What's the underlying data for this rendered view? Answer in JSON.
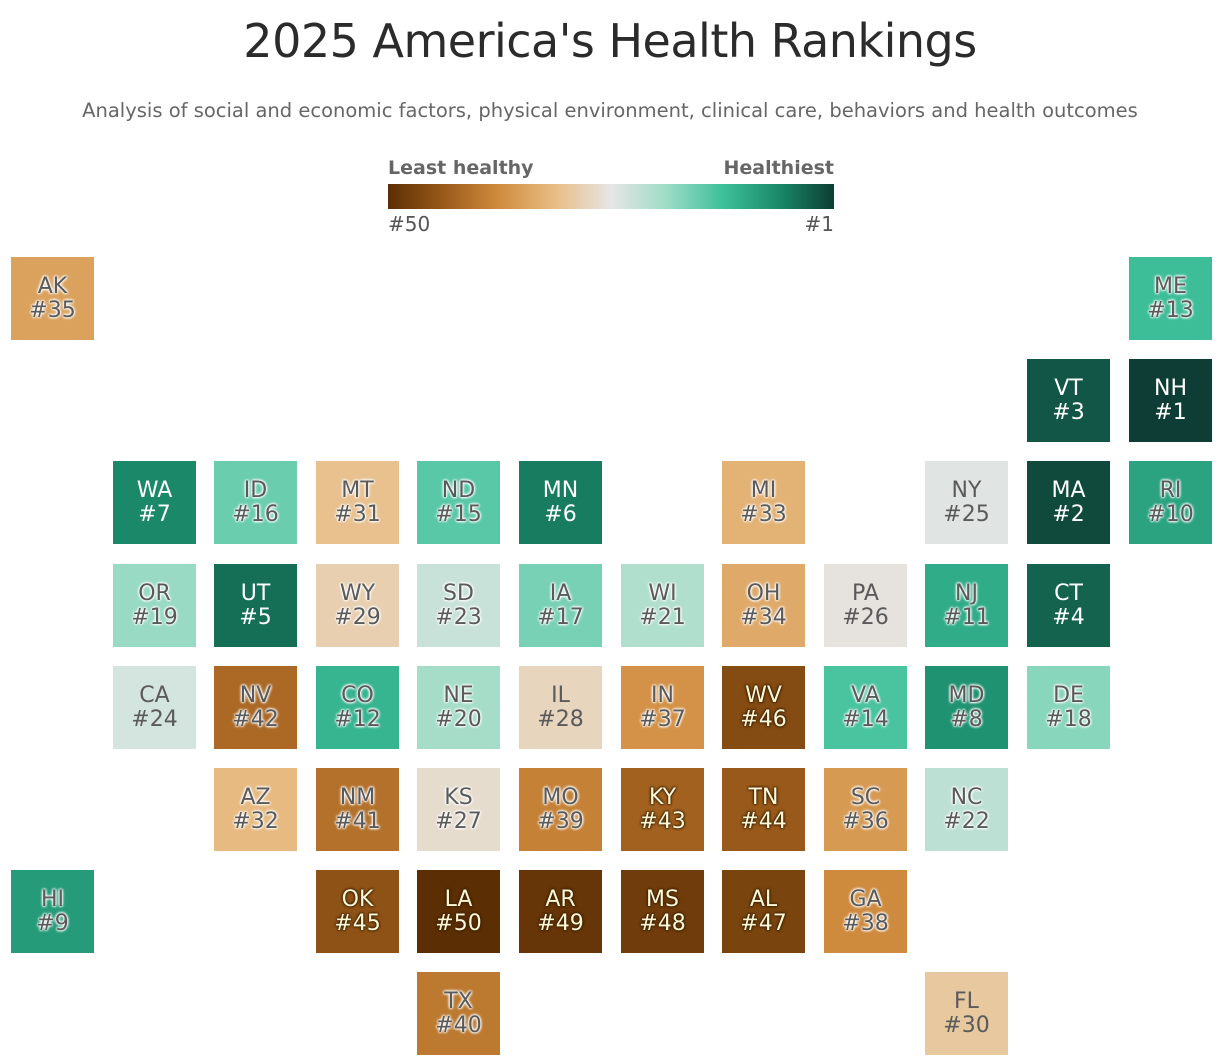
{
  "title": "2025 America's Health Rankings",
  "subtitle": "Analysis of social and economic factors, physical environment, clinical care, behaviors and health outcomes",
  "legend": {
    "left_label": "Least healthy",
    "right_label": "Healthiest",
    "left_tick": "#50",
    "right_tick": "#1",
    "colors": [
      "#5c2e04",
      "#9a5a1a",
      "#d08c3e",
      "#e8bd85",
      "#e6e6e6",
      "#9edcc6",
      "#3ec09a",
      "#1a8a6a",
      "#0d3d34"
    ]
  },
  "states": [
    {
      "abbr": "AK",
      "rank": 35,
      "label": "#35",
      "col": 0,
      "row": 0
    },
    {
      "abbr": "ME",
      "rank": 13,
      "label": "#13",
      "col": 11,
      "row": 0
    },
    {
      "abbr": "VT",
      "rank": 3,
      "label": "#3",
      "col": 10,
      "row": 1
    },
    {
      "abbr": "NH",
      "rank": 1,
      "label": "#1",
      "col": 11,
      "row": 1
    },
    {
      "abbr": "WA",
      "rank": 7,
      "label": "#7",
      "col": 1,
      "row": 2
    },
    {
      "abbr": "ID",
      "rank": 16,
      "label": "#16",
      "col": 2,
      "row": 2
    },
    {
      "abbr": "MT",
      "rank": 31,
      "label": "#31",
      "col": 3,
      "row": 2
    },
    {
      "abbr": "ND",
      "rank": 15,
      "label": "#15",
      "col": 4,
      "row": 2
    },
    {
      "abbr": "MN",
      "rank": 6,
      "label": "#6",
      "col": 5,
      "row": 2
    },
    {
      "abbr": "MI",
      "rank": 33,
      "label": "#33",
      "col": 7,
      "row": 2
    },
    {
      "abbr": "NY",
      "rank": 25,
      "label": "#25",
      "col": 9,
      "row": 2
    },
    {
      "abbr": "MA",
      "rank": 2,
      "label": "#2",
      "col": 10,
      "row": 2
    },
    {
      "abbr": "RI",
      "rank": 10,
      "label": "#10",
      "col": 11,
      "row": 2
    },
    {
      "abbr": "OR",
      "rank": 19,
      "label": "#19",
      "col": 1,
      "row": 3
    },
    {
      "abbr": "UT",
      "rank": 5,
      "label": "#5",
      "col": 2,
      "row": 3
    },
    {
      "abbr": "WY",
      "rank": 29,
      "label": "#29",
      "col": 3,
      "row": 3
    },
    {
      "abbr": "SD",
      "rank": 23,
      "label": "#23",
      "col": 4,
      "row": 3
    },
    {
      "abbr": "IA",
      "rank": 17,
      "label": "#17",
      "col": 5,
      "row": 3
    },
    {
      "abbr": "WI",
      "rank": 21,
      "label": "#21",
      "col": 6,
      "row": 3
    },
    {
      "abbr": "OH",
      "rank": 34,
      "label": "#34",
      "col": 7,
      "row": 3
    },
    {
      "abbr": "PA",
      "rank": 26,
      "label": "#26",
      "col": 8,
      "row": 3
    },
    {
      "abbr": "NJ",
      "rank": 11,
      "label": "#11",
      "col": 9,
      "row": 3
    },
    {
      "abbr": "CT",
      "rank": 4,
      "label": "#4",
      "col": 10,
      "row": 3
    },
    {
      "abbr": "CA",
      "rank": 24,
      "label": "#24",
      "col": 1,
      "row": 4
    },
    {
      "abbr": "NV",
      "rank": 42,
      "label": "#42",
      "col": 2,
      "row": 4
    },
    {
      "abbr": "CO",
      "rank": 12,
      "label": "#12",
      "col": 3,
      "row": 4
    },
    {
      "abbr": "NE",
      "rank": 20,
      "label": "#20",
      "col": 4,
      "row": 4
    },
    {
      "abbr": "IL",
      "rank": 28,
      "label": "#28",
      "col": 5,
      "row": 4
    },
    {
      "abbr": "IN",
      "rank": 37,
      "label": "#37",
      "col": 6,
      "row": 4
    },
    {
      "abbr": "WV",
      "rank": 46,
      "label": "#46",
      "col": 7,
      "row": 4
    },
    {
      "abbr": "VA",
      "rank": 14,
      "label": "#14",
      "col": 8,
      "row": 4
    },
    {
      "abbr": "MD",
      "rank": 8,
      "label": "#8",
      "col": 9,
      "row": 4
    },
    {
      "abbr": "DE",
      "rank": 18,
      "label": "#18",
      "col": 10,
      "row": 4
    },
    {
      "abbr": "AZ",
      "rank": 32,
      "label": "#32",
      "col": 2,
      "row": 5
    },
    {
      "abbr": "NM",
      "rank": 41,
      "label": "#41",
      "col": 3,
      "row": 5
    },
    {
      "abbr": "KS",
      "rank": 27,
      "label": "#27",
      "col": 4,
      "row": 5
    },
    {
      "abbr": "MO",
      "rank": 39,
      "label": "#39",
      "col": 5,
      "row": 5
    },
    {
      "abbr": "KY",
      "rank": 43,
      "label": "#43",
      "col": 6,
      "row": 5
    },
    {
      "abbr": "TN",
      "rank": 44,
      "label": "#44",
      "col": 7,
      "row": 5
    },
    {
      "abbr": "SC",
      "rank": 36,
      "label": "#36",
      "col": 8,
      "row": 5
    },
    {
      "abbr": "NC",
      "rank": 22,
      "label": "#22",
      "col": 9,
      "row": 5
    },
    {
      "abbr": "HI",
      "rank": 9,
      "label": "#9",
      "col": 0,
      "row": 6
    },
    {
      "abbr": "OK",
      "rank": 45,
      "label": "#45",
      "col": 3,
      "row": 6
    },
    {
      "abbr": "LA",
      "rank": 50,
      "label": "#50",
      "col": 4,
      "row": 6
    },
    {
      "abbr": "AR",
      "rank": 49,
      "label": "#49",
      "col": 5,
      "row": 6
    },
    {
      "abbr": "MS",
      "rank": 48,
      "label": "#48",
      "col": 6,
      "row": 6
    },
    {
      "abbr": "AL",
      "rank": 47,
      "label": "#47",
      "col": 7,
      "row": 6
    },
    {
      "abbr": "GA",
      "rank": 38,
      "label": "#38",
      "col": 8,
      "row": 6
    },
    {
      "abbr": "TX",
      "rank": 40,
      "label": "#40",
      "col": 4,
      "row": 7
    },
    {
      "abbr": "FL",
      "rank": 30,
      "label": "#30",
      "col": 9,
      "row": 7
    }
  ]
}
